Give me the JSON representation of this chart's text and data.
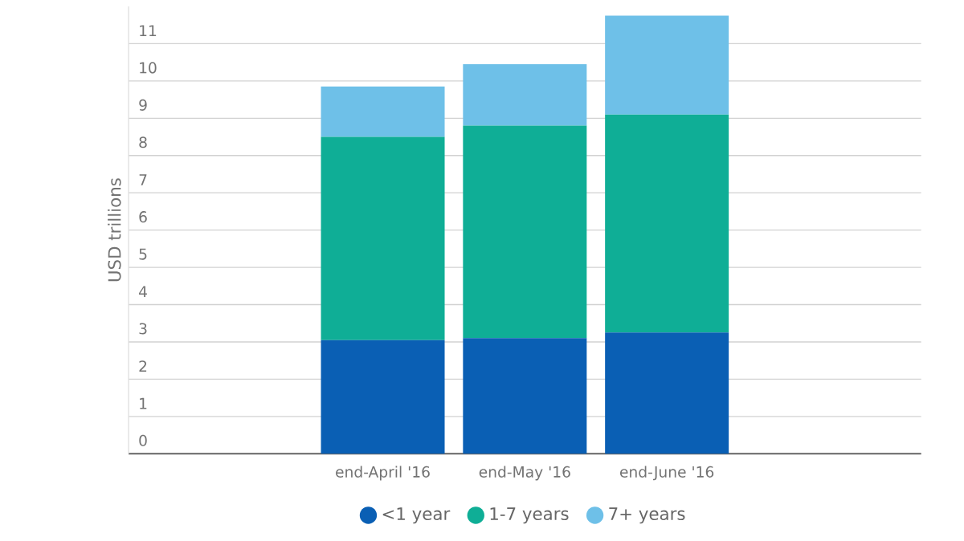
{
  "chart_data": {
    "type": "bar",
    "stacked": true,
    "ylabel": "USD trillions",
    "categories": [
      "end-April '16",
      "end-May '16",
      "end-June '16"
    ],
    "series": [
      {
        "name": "<1 year",
        "color": "#0a5fb4",
        "values": [
          3.05,
          3.1,
          3.25
        ]
      },
      {
        "name": "1-7 years",
        "color": "#0fae96",
        "values": [
          5.45,
          5.7,
          5.85
        ]
      },
      {
        "name": "7+ years",
        "color": "#6ec0e8",
        "values": [
          1.35,
          1.65,
          2.65
        ]
      }
    ],
    "ylim": [
      0,
      12
    ],
    "yticks": [
      0,
      1,
      2,
      3,
      4,
      5,
      6,
      7,
      8,
      9,
      10,
      11
    ],
    "grid": "y",
    "legend": "bottom"
  }
}
